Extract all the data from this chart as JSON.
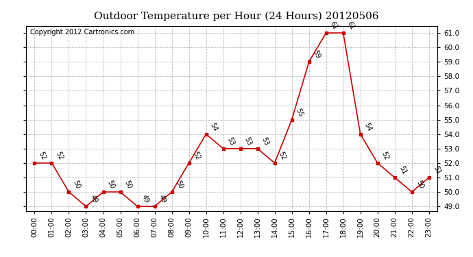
{
  "title": "Outdoor Temperature per Hour (24 Hours) 20120506",
  "copyright": "Copyright 2012 Cartronics.com",
  "hours": [
    "00:00",
    "01:00",
    "02:00",
    "03:00",
    "04:00",
    "05:00",
    "06:00",
    "07:00",
    "08:00",
    "09:00",
    "10:00",
    "11:00",
    "12:00",
    "13:00",
    "14:00",
    "15:00",
    "16:00",
    "17:00",
    "18:00",
    "19:00",
    "20:00",
    "21:00",
    "22:00",
    "23:00"
  ],
  "temps": [
    52,
    52,
    50,
    49,
    50,
    50,
    49,
    49,
    50,
    52,
    54,
    53,
    53,
    53,
    52,
    55,
    59,
    61,
    61,
    54,
    52,
    51,
    50,
    51
  ],
  "line_color": "#cc0000",
  "marker_color": "#cc0000",
  "grid_color": "#bbbbbb",
  "background_color": "#ffffff",
  "ylim_min": 48.7,
  "ylim_max": 61.5,
  "title_fontsize": 11,
  "copyright_fontsize": 7,
  "annotation_fontsize": 7,
  "tick_fontsize": 7.5,
  "yticks": [
    49.0,
    50.0,
    51.0,
    52.0,
    53.0,
    54.0,
    55.0,
    56.0,
    57.0,
    58.0,
    59.0,
    60.0,
    61.0
  ]
}
